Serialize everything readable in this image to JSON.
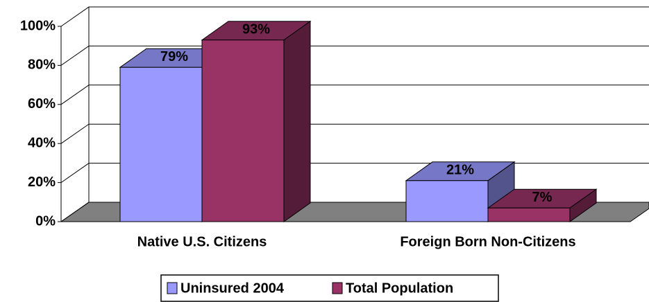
{
  "chart_data": {
    "type": "bar3d",
    "categories": [
      "Native U.S. Citizens",
      "Foreign Born Non-Citizens"
    ],
    "series": [
      {
        "name": "Uninsured 2004",
        "color": "#9999ff",
        "values": [
          79,
          21
        ],
        "value_labels": [
          "79%",
          "21%"
        ]
      },
      {
        "name": "Total Population",
        "color": "#993366",
        "values": [
          93,
          7
        ],
        "value_labels": [
          "93%",
          "7%"
        ]
      }
    ],
    "ylim": [
      0,
      100
    ],
    "yticks": [
      {
        "value": 0,
        "label": "0%"
      },
      {
        "value": 20,
        "label": "20%"
      },
      {
        "value": 40,
        "label": "40%"
      },
      {
        "value": 60,
        "label": "60%"
      },
      {
        "value": 80,
        "label": "80%"
      },
      {
        "value": 100,
        "label": "100%"
      }
    ],
    "grid": true,
    "legend": "bottom"
  }
}
